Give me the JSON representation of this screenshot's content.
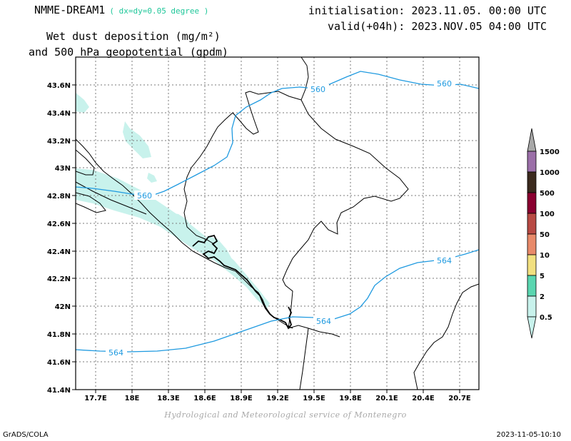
{
  "header": {
    "model": "NMME-DREAM1",
    "resolution": "( dx=dy=0.05 degree )",
    "init": "initialisation: 2023.11.05. 00:00 UTC",
    "valid": "valid(+04h): 2023.NOV.05 04:00 UTC",
    "variable_line1": "Wet dust deposition (mg/m²)",
    "variable_line2": "and 500 hPa geopotential (gpdm)"
  },
  "axes": {
    "lon_ticks": [
      "17.7E",
      "18E",
      "18.3E",
      "18.6E",
      "18.9E",
      "19.2E",
      "19.5E",
      "19.8E",
      "20.1E",
      "20.4E",
      "20.7E"
    ],
    "lat_ticks": [
      "43.6N",
      "43.4N",
      "43.2N",
      "43N",
      "42.8N",
      "42.6N",
      "42.4N",
      "42.2N",
      "42N",
      "41.8N",
      "41.6N",
      "41.4N"
    ]
  },
  "contours": [
    {
      "value": "560",
      "label": "560"
    },
    {
      "value": "564",
      "label": "564"
    }
  ],
  "colorbar": {
    "levels": [
      "1500",
      "1000",
      "500",
      "100",
      "50",
      "10",
      "5",
      "2",
      "0.5"
    ],
    "colors": [
      "#a8a8a8",
      "#9b6fa8",
      "#3b2a1e",
      "#8a0030",
      "#b84a44",
      "#e88a6a",
      "#f2e080",
      "#5ad6b0",
      "#c8f2ec"
    ]
  },
  "dust_color": "#c8f2ec",
  "contour_color": "#1f9ae0",
  "credit": "Hydrological and Meteorological service of Montenegro",
  "footer": {
    "left": "GrADS/COLA",
    "right": "2023-11-05-10:10"
  }
}
